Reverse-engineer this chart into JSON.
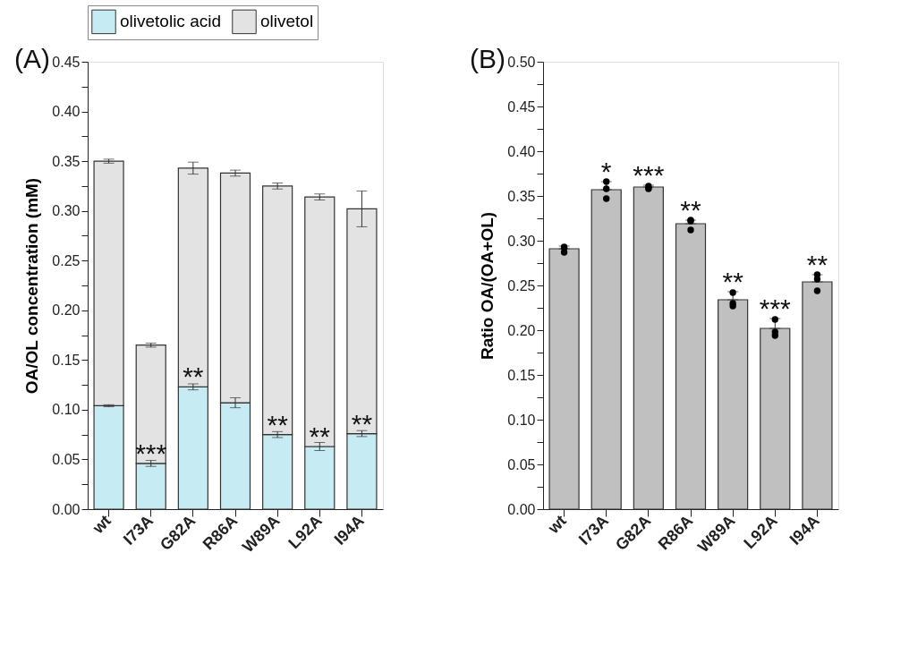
{
  "chart_data": [
    {
      "type": "bar",
      "stacked": true,
      "categories": [
        "wt",
        "I73A",
        "G82A",
        "R86A",
        "W89A",
        "L92A",
        "I94A"
      ],
      "series": [
        {
          "name": "olivetolic acid",
          "color": "#c6ebf3",
          "values": [
            0.104,
            0.046,
            0.123,
            0.107,
            0.075,
            0.063,
            0.076
          ],
          "errors": [
            0.001,
            0.003,
            0.003,
            0.005,
            0.003,
            0.004,
            0.003
          ]
        },
        {
          "name": "olivetol",
          "color": "#e3e3e3",
          "values": [
            0.246,
            0.119,
            0.22,
            0.231,
            0.25,
            0.251,
            0.226
          ],
          "errors": [
            0.002,
            0.002,
            0.006,
            0.003,
            0.003,
            0.003,
            0.018
          ]
        }
      ],
      "ylabel": "OA/OL concentration (mM)",
      "ylim": [
        0,
        0.45
      ],
      "yticks": [
        {
          "value": 0,
          "label": "0.00"
        },
        {
          "value": 0.025,
          "label": null
        },
        {
          "value": 0.05,
          "label": "0.05"
        },
        {
          "value": 0.075,
          "label": null
        },
        {
          "value": 0.1,
          "label": "0.10"
        },
        {
          "value": 0.125,
          "label": null
        },
        {
          "value": 0.15,
          "label": "0.15"
        },
        {
          "value": 0.175,
          "label": null
        },
        {
          "value": 0.2,
          "label": "0.20"
        },
        {
          "value": 0.225,
          "label": null
        },
        {
          "value": 0.25,
          "label": "0.25"
        },
        {
          "value": 0.275,
          "label": null
        },
        {
          "value": 0.3,
          "label": "0.30"
        },
        {
          "value": 0.325,
          "label": null
        },
        {
          "value": 0.35,
          "label": "0.35"
        },
        {
          "value": 0.375,
          "label": null
        },
        {
          "value": 0.4,
          "label": "0.40"
        },
        {
          "value": 0.425,
          "label": null
        },
        {
          "value": 0.45,
          "label": "0.45"
        }
      ],
      "legend": "top",
      "grid": false,
      "annotations": [
        "(A)",
        {
          "text": "***",
          "x": "I73A",
          "y": 0.046
        },
        {
          "text": "**",
          "x": "G82A",
          "y": 0.123
        },
        {
          "text": "**",
          "x": "W89A",
          "y": 0.075
        },
        {
          "text": "**",
          "x": "L92A",
          "y": 0.063
        },
        {
          "text": "**",
          "x": "I94A",
          "y": 0.076
        }
      ]
    },
    {
      "type": "bar",
      "categories": [
        "wt",
        "I73A",
        "G82A",
        "R86A",
        "W89A",
        "L92A",
        "I94A"
      ],
      "series": [
        {
          "type": "bar",
          "color": "#c0c0c0",
          "values": [
            0.291,
            0.357,
            0.36,
            0.319,
            0.234,
            0.202,
            0.254
          ],
          "errors": [
            [
              0.291,
              0.294
            ],
            [
              0.357,
              0.366
            ],
            [
              0.36,
              0.362
            ],
            [
              0.319,
              0.323
            ],
            [
              0.234,
              0.243
            ],
            [
              0.202,
              0.213
            ],
            [
              0.254,
              0.262
            ]
          ]
        },
        {
          "type": "scatter",
          "color": "#000000",
          "marker": "circle",
          "x": [
            "wt",
            "wt",
            "wt",
            "I73A",
            "I73A",
            "I73A",
            "G82A",
            "G82A",
            "G82A",
            "R86A",
            "R86A",
            "R86A",
            "W89A",
            "W89A",
            "W89A",
            "L92A",
            "L92A",
            "L92A",
            "I94A",
            "I94A",
            "I94A"
          ],
          "values": [
            0.293,
            0.292,
            0.287,
            0.366,
            0.358,
            0.347,
            0.361,
            0.359,
            0.358,
            0.323,
            0.322,
            0.312,
            0.242,
            0.23,
            0.227,
            0.212,
            0.198,
            0.194,
            0.262,
            0.257,
            0.244
          ]
        }
      ],
      "ylabel": "Ratio OA/(OA+OL)",
      "ylim": [
        0,
        0.5
      ],
      "yticks": [
        {
          "value": 0,
          "label": "0.00"
        },
        {
          "value": 0.025,
          "label": null
        },
        {
          "value": 0.05,
          "label": "0.05"
        },
        {
          "value": 0.075,
          "label": null
        },
        {
          "value": 0.1,
          "label": "0.10"
        },
        {
          "value": 0.125,
          "label": null
        },
        {
          "value": 0.15,
          "label": "0.15"
        },
        {
          "value": 0.175,
          "label": null
        },
        {
          "value": 0.2,
          "label": "0.20"
        },
        {
          "value": 0.225,
          "label": null
        },
        {
          "value": 0.25,
          "label": "0.25"
        },
        {
          "value": 0.275,
          "label": null
        },
        {
          "value": 0.3,
          "label": "0.30"
        },
        {
          "value": 0.325,
          "label": null
        },
        {
          "value": 0.35,
          "label": "0.35"
        },
        {
          "value": 0.375,
          "label": null
        },
        {
          "value": 0.4,
          "label": "0.40"
        },
        {
          "value": 0.425,
          "label": null
        },
        {
          "value": 0.45,
          "label": "0.45"
        },
        {
          "value": 0.475,
          "label": null
        },
        {
          "value": 0.5,
          "label": "0.50"
        }
      ],
      "legend": false,
      "grid": false,
      "annotations": [
        "(B)",
        {
          "text": "*",
          "x": "I73A",
          "y": 0.366
        },
        {
          "text": "***",
          "x": "G82A",
          "y": 0.362
        },
        {
          "text": "**",
          "x": "R86A",
          "y": 0.323
        },
        {
          "text": "**",
          "x": "W89A",
          "y": 0.243
        },
        {
          "text": "***",
          "x": "L92A",
          "y": 0.213
        },
        {
          "text": "**",
          "x": "I94A",
          "y": 0.262
        }
      ]
    }
  ]
}
